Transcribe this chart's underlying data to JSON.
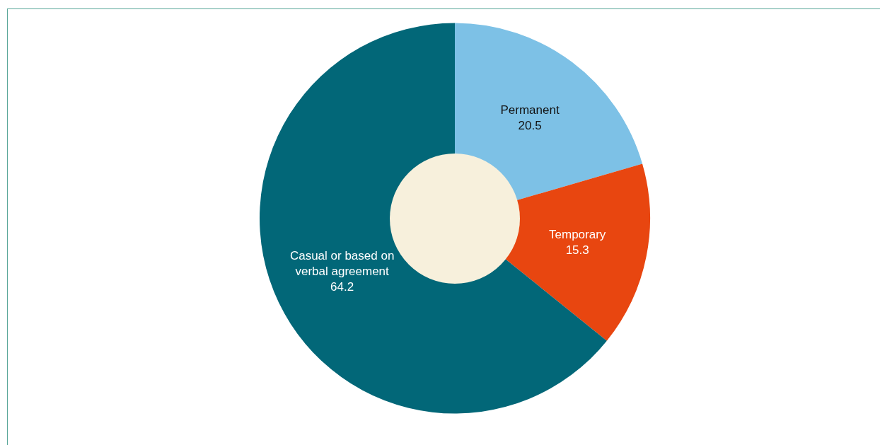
{
  "chart_data": {
    "type": "donut",
    "categories": [
      "Permanent",
      "Temporary",
      "Casual or based on verbal agreement"
    ],
    "values": [
      20.5,
      15.3,
      64.2
    ],
    "colors": [
      "#7dc1e6",
      "#e84610",
      "#026778"
    ],
    "data_labels": true
  }
}
